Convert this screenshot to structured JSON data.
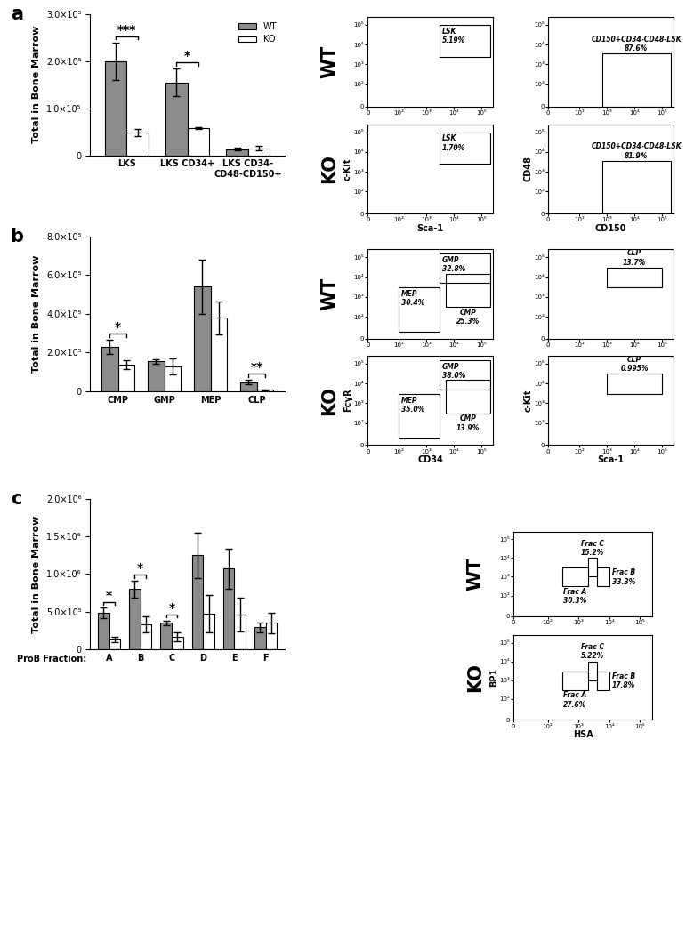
{
  "chart_data": [
    {
      "type": "bar",
      "panel": "a",
      "ylabel": "Total in Bone Marrow",
      "categories": [
        "LKS",
        "LKS CD34+",
        "LKS CD34-\nCD48-CD150+"
      ],
      "series": [
        {
          "name": "WT",
          "color": "#8c8c8c",
          "values": [
            200000,
            155000,
            13000
          ],
          "errors": [
            40000,
            30000,
            3000
          ]
        },
        {
          "name": "KO",
          "color": "#ffffff",
          "values": [
            48000,
            58000,
            15000
          ],
          "errors": [
            8000,
            2000,
            5000
          ]
        }
      ],
      "significance": [
        {
          "category": "LKS",
          "label": "***"
        },
        {
          "category": "LKS CD34+",
          "label": "*"
        }
      ],
      "ylim": [
        0,
        300000
      ],
      "yticks": [
        0,
        {
          "value": 100000,
          "label": "1.0×10⁵"
        },
        {
          "value": 200000,
          "label": "2.0×10⁵"
        },
        {
          "value": 300000,
          "label": "3.0×10⁵"
        }
      ],
      "legend": "upper right"
    },
    {
      "type": "flow",
      "panel": "a",
      "sample": "WT",
      "log": true,
      "xlim": [
        0,
        250000
      ],
      "ylim": [
        0,
        250000
      ],
      "xticks": [
        0,
        {
          "value": 100,
          "label": "10²"
        },
        {
          "value": 1000,
          "label": "10³"
        },
        {
          "value": 10000,
          "label": "10⁴"
        },
        {
          "value": 100000,
          "label": "10⁵"
        }
      ],
      "yticks": [
        0,
        {
          "value": 100,
          "label": "10²"
        },
        {
          "value": 1000,
          "label": "10³"
        },
        {
          "value": 10000,
          "label": "10⁴"
        },
        {
          "value": 100000,
          "label": "10⁵"
        }
      ],
      "plots": [
        {
          "gates": [
            {
              "label": "LSK\n5.19%",
              "x": [
                3000,
                200000
              ],
              "y": [
                2500,
                100000
              ]
            }
          ]
        },
        {
          "gates": [
            {
              "label": "CD150+CD34-CD48-LSK\n87.6%",
              "x": [
                700,
                200000
              ],
              "y": [
                0,
                3500
              ]
            }
          ]
        }
      ]
    },
    {
      "type": "flow",
      "panel": "a",
      "sample": "KO",
      "log": true,
      "xlim": [
        0,
        250000
      ],
      "ylim": [
        0,
        250000
      ],
      "xticks": [
        0,
        {
          "value": 100,
          "label": "10²"
        },
        {
          "value": 1000,
          "label": "10³"
        },
        {
          "value": 10000,
          "label": "10⁴"
        },
        {
          "value": 100000,
          "label": "10⁵"
        }
      ],
      "yticks": [
        0,
        {
          "value": 100,
          "label": "10²"
        },
        {
          "value": 1000,
          "label": "10³"
        },
        {
          "value": 10000,
          "label": "10⁴"
        },
        {
          "value": 100000,
          "label": "10⁵"
        }
      ],
      "plots": [
        {
          "xlabel": "Sca-1",
          "ylabel": "c-Kit",
          "gates": [
            {
              "label": "LSK\n1.70%",
              "x": [
                3000,
                200000
              ],
              "y": [
                2500,
                100000
              ]
            }
          ]
        },
        {
          "xlabel": "CD150",
          "ylabel": "CD48",
          "gates": [
            {
              "label": "CD150+CD34-CD48-LSK\n81.9%",
              "x": [
                700,
                200000
              ],
              "y": [
                0,
                3500
              ]
            }
          ]
        }
      ]
    },
    {
      "type": "bar",
      "panel": "b",
      "ylabel": "Total in Bone Marrow",
      "categories": [
        "CMP",
        "GMP",
        "MEP",
        "CLP"
      ],
      "series": [
        {
          "name": "WT",
          "color": "#8c8c8c",
          "values": [
            230000,
            155000,
            540000,
            48000
          ],
          "errors": [
            35000,
            12000,
            140000,
            12000
          ]
        },
        {
          "name": "KO",
          "color": "#ffffff",
          "values": [
            138000,
            128000,
            380000,
            8000
          ],
          "errors": [
            25000,
            40000,
            85000,
            3000
          ]
        }
      ],
      "significance": [
        {
          "category": "CMP",
          "label": "*"
        },
        {
          "category": "CLP",
          "label": "**"
        }
      ],
      "ylim": [
        0,
        800000
      ],
      "yticks": [
        0,
        {
          "value": 200000,
          "label": "2.0×10⁵"
        },
        {
          "value": 400000,
          "label": "4.0×10⁵"
        },
        {
          "value": 600000,
          "label": "6.0×10⁵"
        },
        {
          "value": 800000,
          "label": "8.0×10⁵"
        }
      ]
    },
    {
      "type": "flow",
      "panel": "b",
      "sample": "WT",
      "log": true,
      "xlim": [
        0,
        250000
      ],
      "ylim": [
        0,
        250000
      ],
      "xticks": [
        0,
        {
          "value": 100,
          "label": "10²"
        },
        {
          "value": 1000,
          "label": "10³"
        },
        {
          "value": 10000,
          "label": "10⁴"
        },
        {
          "value": 100000,
          "label": "10⁵"
        }
      ],
      "yticks": [
        0,
        {
          "value": 100,
          "label": "10²"
        },
        {
          "value": 1000,
          "label": "10³"
        },
        {
          "value": 10000,
          "label": "10⁴"
        },
        {
          "value": 100000,
          "label": "10⁵"
        }
      ],
      "plots": [
        {
          "gates": [
            {
              "label": "GMP\n32.8%",
              "x": [
                3000,
                200000
              ],
              "y": [
                5000,
                150000
              ]
            },
            {
              "label": "CMP\n25.3%",
              "x": [
                5000,
                200000
              ],
              "y": [
                300,
                15000
              ]
            },
            {
              "label": "MEP\n30.4%",
              "x": [
                100,
                3000
              ],
              "y": [
                30,
                3000
              ]
            }
          ]
        },
        {
          "gates": [
            {
              "label": "CLP\n13.7%",
              "x": [
                1000,
                100000
              ],
              "y": [
                3000,
                30000
              ]
            }
          ]
        }
      ]
    },
    {
      "type": "flow",
      "panel": "b",
      "sample": "KO",
      "log": true,
      "xlim": [
        0,
        250000
      ],
      "ylim": [
        0,
        250000
      ],
      "xticks": [
        0,
        {
          "value": 100,
          "label": "10²"
        },
        {
          "value": 1000,
          "label": "10³"
        },
        {
          "value": 10000,
          "label": "10⁴"
        },
        {
          "value": 100000,
          "label": "10⁵"
        }
      ],
      "yticks": [
        0,
        {
          "value": 100,
          "label": "10²"
        },
        {
          "value": 1000,
          "label": "10³"
        },
        {
          "value": 10000,
          "label": "10⁴"
        },
        {
          "value": 100000,
          "label": "10⁵"
        }
      ],
      "plots": [
        {
          "xlabel": "CD34",
          "ylabel": "FcγR",
          "gates": [
            {
              "label": "GMP\n38.0%",
              "x": [
                3000,
                200000
              ],
              "y": [
                5000,
                150000
              ]
            },
            {
              "label": "CMP\n13.9%",
              "x": [
                5000,
                200000
              ],
              "y": [
                300,
                15000
              ]
            },
            {
              "label": "MEP\n35.0%",
              "x": [
                100,
                3000
              ],
              "y": [
                30,
                3000
              ]
            }
          ]
        },
        {
          "xlabel": "Sca-1",
          "ylabel": "c-Kit",
          "gates": [
            {
              "label": "CLP\n0.995%",
              "x": [
                1000,
                100000
              ],
              "y": [
                3000,
                30000
              ]
            }
          ]
        }
      ]
    },
    {
      "type": "bar",
      "panel": "c",
      "ylabel": "Total in Bone Marrow",
      "xlabel": "ProB Fraction:",
      "categories": [
        "A",
        "B",
        "C",
        "D",
        "E",
        "F"
      ],
      "series": [
        {
          "name": "WT",
          "color": "#8c8c8c",
          "values": [
            480000,
            800000,
            350000,
            1250000,
            1070000,
            290000
          ],
          "errors": [
            70000,
            110000,
            30000,
            300000,
            270000,
            70000
          ]
        },
        {
          "name": "KO",
          "color": "#ffffff",
          "values": [
            130000,
            330000,
            170000,
            470000,
            460000,
            350000
          ],
          "errors": [
            40000,
            110000,
            60000,
            250000,
            220000,
            140000
          ]
        }
      ],
      "significance": [
        {
          "category": "A",
          "label": "*"
        },
        {
          "category": "B",
          "label": "*"
        },
        {
          "category": "C",
          "label": "*"
        }
      ],
      "ylim": [
        0,
        2000000
      ],
      "yticks": [
        0,
        {
          "value": 500000,
          "label": "5.0×10⁵"
        },
        {
          "value": 1000000,
          "label": "1.0×10⁶"
        },
        {
          "value": 1500000,
          "label": "1.5×10⁶"
        },
        {
          "value": 2000000,
          "label": "2.0×10⁶"
        }
      ]
    },
    {
      "type": "flow",
      "panel": "c",
      "sample": "WT",
      "log": true,
      "xlim": [
        0,
        250000
      ],
      "ylim": [
        0,
        250000
      ],
      "xticks": [
        0,
        {
          "value": 100,
          "label": "10²"
        },
        {
          "value": 1000,
          "label": "10³"
        },
        {
          "value": 10000,
          "label": "10⁴"
        },
        {
          "value": 100000,
          "label": "10⁵"
        }
      ],
      "yticks": [
        0,
        {
          "value": 100,
          "label": "10²"
        },
        {
          "value": 1000,
          "label": "10³"
        },
        {
          "value": 10000,
          "label": "10⁴"
        },
        {
          "value": 100000,
          "label": "10⁵"
        }
      ],
      "plots": [
        {
          "gates": [
            {
              "label": "Frac A\n30.3%",
              "x": [
                300,
                2000
              ],
              "y": [
                300,
                3000
              ]
            },
            {
              "label": "Frac B\n33.3%",
              "x": [
                4000,
                10000
              ],
              "y": [
                300,
                3000
              ]
            },
            {
              "label": "Frac C\n15.2%",
              "x": [
                2000,
                4000
              ],
              "y": [
                1000,
                10000
              ]
            }
          ]
        }
      ]
    },
    {
      "type": "flow",
      "panel": "c",
      "sample": "KO",
      "log": true,
      "xlim": [
        0,
        250000
      ],
      "ylim": [
        0,
        250000
      ],
      "xticks": [
        0,
        {
          "value": 100,
          "label": "10²"
        },
        {
          "value": 1000,
          "label": "10³"
        },
        {
          "value": 10000,
          "label": "10⁴"
        },
        {
          "value": 100000,
          "label": "10⁵"
        }
      ],
      "yticks": [
        0,
        {
          "value": 100,
          "label": "10²"
        },
        {
          "value": 1000,
          "label": "10³"
        },
        {
          "value": 10000,
          "label": "10⁴"
        },
        {
          "value": 100000,
          "label": "10⁵"
        }
      ],
      "plots": [
        {
          "xlabel": "HSA",
          "ylabel": "BP1",
          "gates": [
            {
              "label": "Frac A\n27.6%",
              "x": [
                300,
                2000
              ],
              "y": [
                300,
                3000
              ]
            },
            {
              "label": "Frac B\n17.8%",
              "x": [
                4000,
                10000
              ],
              "y": [
                300,
                3000
              ]
            },
            {
              "label": "Frac C\n5.22%",
              "x": [
                2000,
                4000
              ],
              "y": [
                1000,
                10000
              ]
            }
          ]
        }
      ]
    }
  ]
}
